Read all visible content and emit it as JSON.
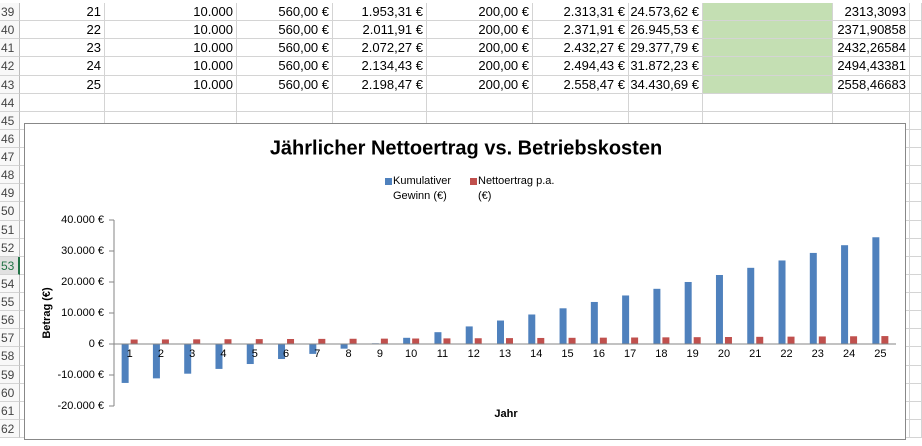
{
  "sheet": {
    "row_numbers": [
      39,
      40,
      41,
      42,
      43,
      44,
      45,
      46,
      47,
      48,
      49,
      50,
      51,
      52,
      53,
      54,
      55,
      56,
      57,
      58,
      59,
      60,
      61,
      62
    ],
    "rows": [
      [
        "21",
        "10.000",
        "560,00 €",
        "1.953,31 €",
        "200,00 €",
        "2.313,31 €",
        "24.573,62 €",
        "2313,3093"
      ],
      [
        "22",
        "10.000",
        "560,00 €",
        "2.011,91 €",
        "200,00 €",
        "2.371,91 €",
        "26.945,53 €",
        "2371,90858"
      ],
      [
        "23",
        "10.000",
        "560,00 €",
        "2.072,27 €",
        "200,00 €",
        "2.432,27 €",
        "29.377,79 €",
        "2432,26584"
      ],
      [
        "24",
        "10.000",
        "560,00 €",
        "2.134,43 €",
        "200,00 €",
        "2.494,43 €",
        "31.872,23 €",
        "2494,43381"
      ],
      [
        "25",
        "10.000",
        "560,00 €",
        "2.198,47 €",
        "200,00 €",
        "2.558,47 €",
        "34.430,69 €",
        "2558,46683"
      ]
    ]
  },
  "chart_data": {
    "type": "bar",
    "title": "Jährlicher Nettoertrag vs. Betriebskosten",
    "x_label": "Jahr",
    "y_label": "Betrag (€)",
    "categories": [
      "1",
      "2",
      "3",
      "4",
      "5",
      "6",
      "7",
      "8",
      "9",
      "10",
      "11",
      "12",
      "13",
      "14",
      "15",
      "16",
      "17",
      "18",
      "19",
      "20",
      "21",
      "22",
      "23",
      "24",
      "25"
    ],
    "series": [
      {
        "name": "Kumulativer Gewinn (€)",
        "color": "#4f81bd",
        "values": [
          -12559,
          -11085,
          -9577,
          -8036,
          -6458,
          -4845,
          -3193,
          -1503,
          227,
          1998,
          3812,
          5669,
          7571,
          9519,
          11515,
          13560,
          15655,
          17803,
          20004,
          22260,
          24574,
          26946,
          29378,
          31872,
          34431
        ]
      },
      {
        "name": "Nettoertrag p.a. (€)",
        "color": "#c0504d",
        "values": [
          1442,
          1474,
          1507,
          1542,
          1577,
          1614,
          1651,
          1690,
          1730,
          1771,
          1813,
          1857,
          1902,
          1948,
          1996,
          2045,
          2096,
          2148,
          2201,
          2256,
          2313,
          2372,
          2432,
          2494,
          2558
        ]
      }
    ],
    "ylim": [
      -20000,
      40000
    ],
    "yticks": [
      {
        "value": -20000,
        "label": "-20.000 €"
      },
      {
        "value": -10000,
        "label": "-10.000 €"
      },
      {
        "value": 0,
        "label": "0 €"
      },
      {
        "value": 10000,
        "label": "10.000 €"
      },
      {
        "value": 20000,
        "label": "20.000 €"
      },
      {
        "value": 30000,
        "label": "30.000 €"
      },
      {
        "value": 40000,
        "label": "40.000 €"
      }
    ],
    "grid": false,
    "legend": "top"
  }
}
